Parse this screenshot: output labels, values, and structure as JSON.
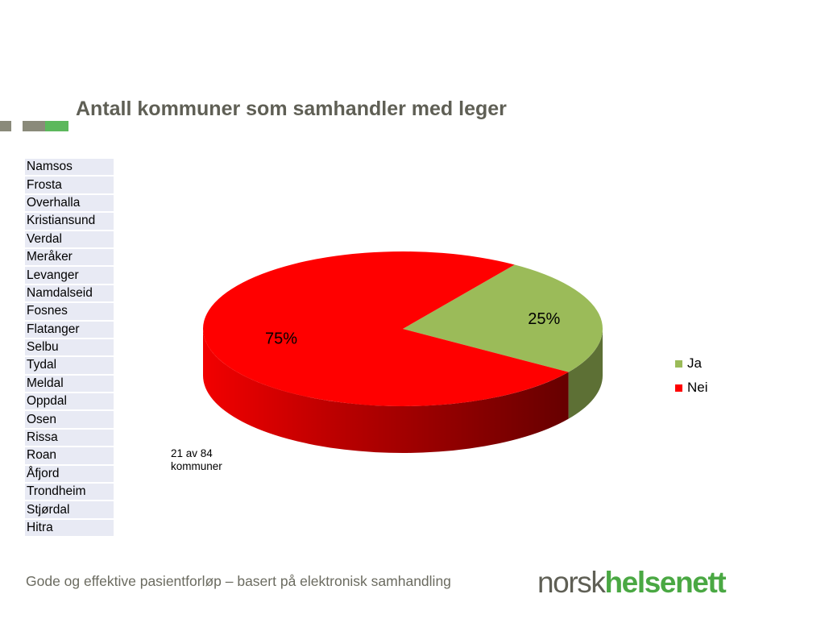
{
  "slide": {
    "title": "Antall kommuner som samhandler med leger",
    "title_color": "#5f5f55",
    "deco_colors": [
      "#8a8a7a",
      "#8a8a7a",
      "#5cb85c"
    ],
    "footer": "Gode og effektive pasientforløp – basert på elektronisk samhandling",
    "footer_color": "#6b6b60",
    "logo_part1": "norsk",
    "logo_part2": "helsenett",
    "logo_color1": "#5f5f55",
    "logo_color2": "#4aa843"
  },
  "municipalities": [
    "Namsos",
    "Frosta",
    "Overhalla",
    "Kristiansund",
    "Verdal",
    "Meråker",
    "Levanger",
    "Namdalseid",
    "Fosnes",
    "Flatanger",
    "Selbu",
    "Tydal",
    "Meldal",
    "Oppdal",
    "Osen",
    "Rissa",
    "Roan",
    "Åfjord",
    "Trondheim",
    "Stjørdal",
    "Hitra"
  ],
  "table_colors": {
    "row_bg": "#e8eaf4",
    "text": "#000000"
  },
  "chart_data": {
    "type": "pie",
    "title": "",
    "categories": [
      "Ja",
      "Nei"
    ],
    "values": [
      25,
      75
    ],
    "data_labels": [
      "25%",
      "75%"
    ],
    "colors": [
      "#9bbb59",
      "#ff0000"
    ],
    "legend": {
      "position": "right",
      "entries": [
        "Ja",
        "Nei"
      ]
    },
    "annotation": [
      "21 av 84",
      "kommuner"
    ],
    "style": "3d"
  }
}
